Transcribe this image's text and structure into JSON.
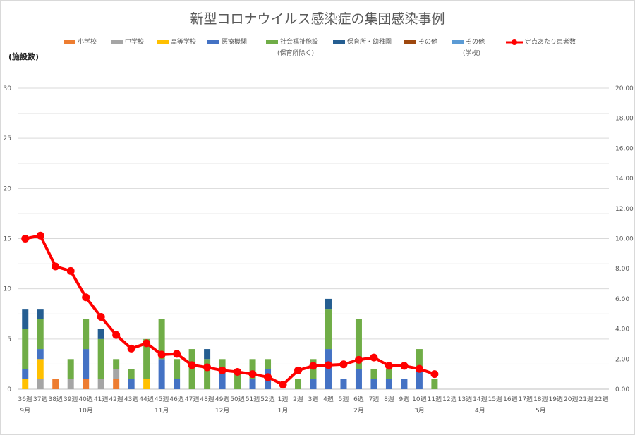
{
  "title": "新型コロナウイルス感染症の集団感染事例",
  "chart_data": {
    "type": "bar+line",
    "title": "新型コロナウイルス感染症の集団感染事例",
    "ylabel_left": "(施設数)",
    "ylim_left": [
      0,
      30
    ],
    "yticks_left": [
      "0",
      "5",
      "10",
      "15",
      "20",
      "25",
      "30"
    ],
    "ylim_right": [
      0,
      20
    ],
    "yticks_right": [
      "0.00",
      "2.00",
      "4.00",
      "6.00",
      "8.00",
      "10.00",
      "12.00",
      "14.00",
      "16.00",
      "18.00",
      "20.00"
    ],
    "grid": true,
    "legend_position": "top",
    "categories": [
      "36週",
      "37週",
      "38週",
      "39週",
      "40週",
      "41週",
      "42週",
      "43週",
      "44週",
      "45週",
      "46週",
      "47週",
      "48週",
      "49週",
      "50週",
      "51週",
      "52週",
      "1週",
      "2週",
      "3週",
      "4週",
      "5週",
      "6週",
      "7週",
      "8週",
      "9週",
      "10週",
      "11週",
      "12週",
      "13週",
      "14週",
      "15週",
      "16週",
      "17週",
      "18週",
      "19週",
      "20週",
      "21週",
      "22週"
    ],
    "month_labels": [
      {
        "label": "9月",
        "index": 0
      },
      {
        "label": "10月",
        "index": 4
      },
      {
        "label": "11月",
        "index": 9
      },
      {
        "label": "12月",
        "index": 13
      },
      {
        "label": "1月",
        "index": 17
      },
      {
        "label": "2月",
        "index": 22
      },
      {
        "label": "3月",
        "index": 26
      },
      {
        "label": "4月",
        "index": 30
      },
      {
        "label": "5月",
        "index": 34
      }
    ],
    "series": [
      {
        "name": "小学校",
        "sub": "",
        "color": "#ed7d31",
        "values": [
          0,
          0,
          1,
          0,
          1,
          0,
          1,
          0,
          0,
          0,
          0,
          0,
          0,
          0,
          0,
          0,
          0,
          0,
          0,
          0,
          0,
          0,
          0,
          0,
          0,
          0,
          0,
          0,
          0,
          0,
          0,
          0,
          0,
          0,
          0,
          0,
          0,
          0,
          0
        ]
      },
      {
        "name": "中学校",
        "sub": "",
        "color": "#a5a5a5",
        "values": [
          0,
          1,
          0,
          1,
          0,
          1,
          1,
          0,
          0,
          0,
          0,
          0,
          0,
          0,
          0,
          0,
          0,
          0,
          0,
          0,
          0,
          0,
          0,
          0,
          0,
          0,
          0,
          0,
          0,
          0,
          0,
          0,
          0,
          0,
          0,
          0,
          0,
          0,
          0
        ]
      },
      {
        "name": "高等学校",
        "sub": "",
        "color": "#ffc000",
        "values": [
          1,
          2,
          0,
          0,
          0,
          0,
          0,
          0,
          1,
          0,
          0,
          0,
          0,
          0,
          0,
          0,
          0,
          0,
          0,
          0,
          0,
          0,
          0,
          0,
          0,
          0,
          0,
          0,
          0,
          0,
          0,
          0,
          0,
          0,
          0,
          0,
          0,
          0,
          0
        ]
      },
      {
        "name": "医療機関",
        "sub": "",
        "color": "#4472c4",
        "values": [
          1,
          1,
          0,
          0,
          3,
          0,
          0,
          1,
          0,
          3,
          1,
          0,
          0,
          2,
          0,
          1,
          2,
          0,
          0,
          1,
          4,
          1,
          2,
          1,
          1,
          1,
          2,
          0,
          0,
          0,
          0,
          0,
          0,
          0,
          0,
          0,
          0,
          0,
          0
        ]
      },
      {
        "name": "社会福祉施設",
        "sub": "(保育所除く)",
        "color": "#70ad47",
        "values": [
          4,
          3,
          0,
          2,
          3,
          4,
          1,
          1,
          4,
          4,
          2,
          4,
          3,
          1,
          2,
          2,
          1,
          0,
          1,
          2,
          4,
          0,
          5,
          1,
          1,
          0,
          2,
          1,
          0,
          0,
          0,
          0,
          0,
          0,
          0,
          0,
          0,
          0,
          0
        ]
      },
      {
        "name": "保育所・幼稚園",
        "sub": "",
        "color": "#255e91",
        "values": [
          2,
          1,
          0,
          0,
          0,
          1,
          0,
          0,
          0,
          0,
          0,
          0,
          1,
          0,
          0,
          0,
          0,
          0,
          0,
          0,
          1,
          0,
          0,
          0,
          0,
          0,
          0,
          0,
          0,
          0,
          0,
          0,
          0,
          0,
          0,
          0,
          0,
          0,
          0
        ]
      },
      {
        "name": "その他",
        "sub": "",
        "color": "#9e480e",
        "values": [
          0,
          0,
          0,
          0,
          0,
          0,
          0,
          0,
          0,
          0,
          0,
          0,
          0,
          0,
          0,
          0,
          0,
          0,
          0,
          0,
          0,
          0,
          0,
          0,
          0,
          0,
          0,
          0,
          0,
          0,
          0,
          0,
          0,
          0,
          0,
          0,
          0,
          0,
          0
        ]
      },
      {
        "name": "その他",
        "sub": "(学校)",
        "color": "#5b9bd5",
        "values": [
          0,
          0,
          0,
          0,
          0,
          0,
          0,
          0,
          0,
          0,
          0,
          0,
          0,
          0,
          0,
          0,
          0,
          0,
          0,
          0,
          0,
          0,
          0,
          0,
          0,
          0,
          0,
          0,
          0,
          0,
          0,
          0,
          0,
          0,
          0,
          0,
          0,
          0,
          0
        ]
      }
    ],
    "line": {
      "name": "定点あたり患者数",
      "color": "#ff0000",
      "axis": "right",
      "values": [
        10.0,
        10.2,
        8.15,
        7.85,
        6.1,
        4.8,
        3.6,
        2.7,
        3.05,
        2.3,
        2.35,
        1.6,
        1.45,
        1.25,
        1.15,
        1.0,
        0.8,
        0.3,
        1.25,
        1.55,
        1.6,
        1.65,
        1.95,
        2.1,
        1.55,
        1.55,
        1.35,
        1.0
      ]
    }
  }
}
